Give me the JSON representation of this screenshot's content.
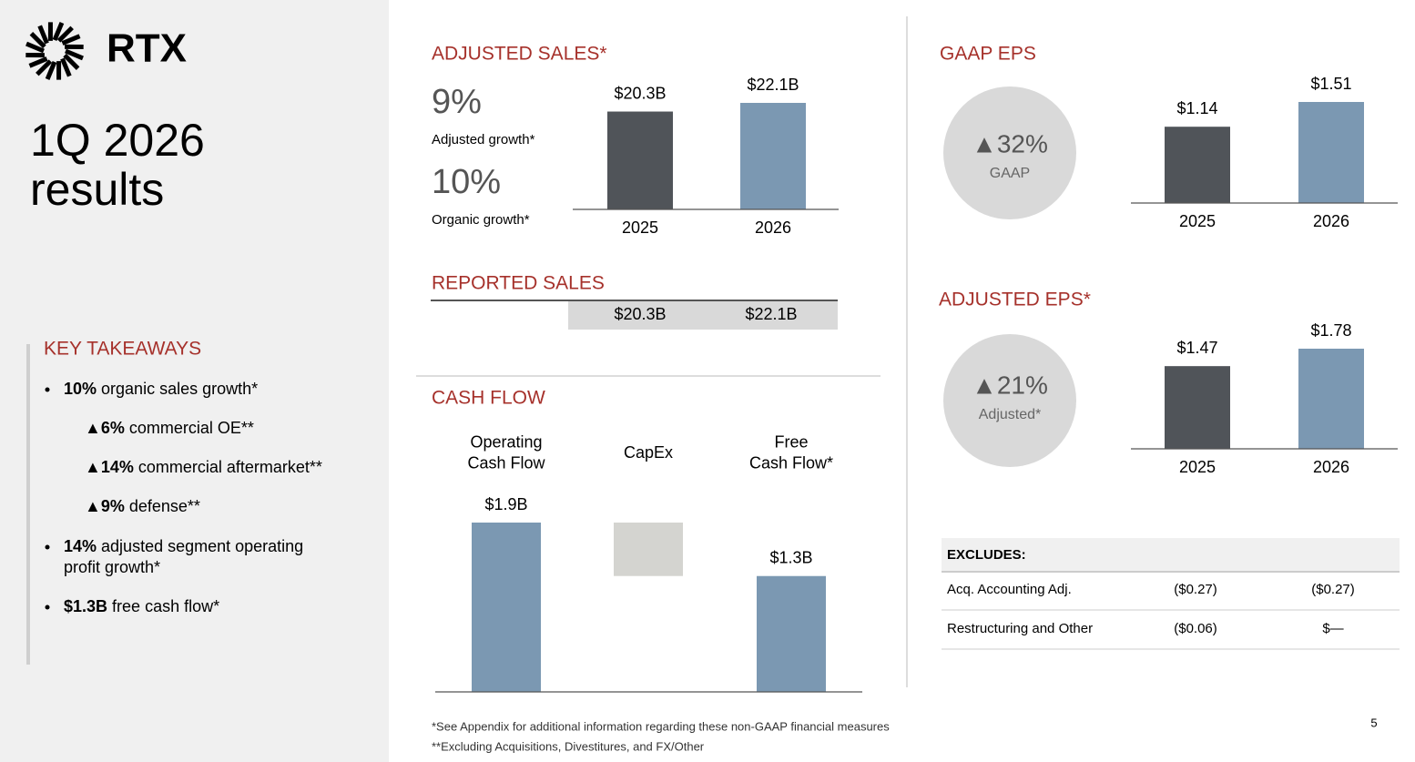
{
  "logo": "RTX",
  "title": {
    "lines": [
      "1Q 2026",
      "results"
    ]
  },
  "takeaways": {
    "heading": "KEY TAKEAWAYS",
    "items": [
      {
        "bold": "10%",
        "text": " organic sales growth*"
      },
      {
        "bold": "▲6%",
        "text": " commercial OE**"
      },
      {
        "bold": "▲14%",
        "text": " commercial aftermarket**"
      },
      {
        "bold": "▲9%",
        "text": " defense**"
      },
      {
        "bold": "14%",
        "text": " adjusted segment operating",
        "text2": "profit growth*"
      },
      {
        "bold": "$1.3B",
        "text": " free cash flow*"
      }
    ]
  },
  "growth": [
    {
      "value": "9%",
      "label": "Adjusted growth*"
    },
    {
      "value": "10%",
      "label": "Organic growth*"
    }
  ],
  "reported_sales": {
    "heading": "REPORTED SALES",
    "values": [
      "$20.3B",
      "$22.1B"
    ]
  },
  "eps_badges": [
    {
      "value": "▲32%",
      "label": "GAAP"
    },
    {
      "value": "▲21%",
      "label": "Adjusted*"
    }
  ],
  "excludes": {
    "header": "EXCLUDES:",
    "rows": [
      [
        "Acq. Accounting Adj.",
        "($0.27)",
        "($0.27)"
      ],
      [
        "Restructuring and Other",
        "($0.06)",
        "$—"
      ]
    ]
  },
  "footnotes": [
    "*See Appendix for additional information regarding these non-GAAP financial measures",
    "**Excluding Acquisitions, Divestitures, and FX/Other"
  ],
  "page_number": "5",
  "chart_data": [
    {
      "type": "bar",
      "title": "ADJUSTED SALES*",
      "categories": [
        "2025",
        "2026"
      ],
      "values": [
        20.3,
        22.1
      ],
      "value_labels": [
        "$20.3B",
        "$22.1B"
      ],
      "colors": [
        "#505459",
        "#7b98b2"
      ]
    },
    {
      "type": "bar",
      "title": "GAAP EPS",
      "categories": [
        "2025",
        "2026"
      ],
      "values": [
        1.14,
        1.51
      ],
      "value_labels": [
        "$1.14",
        "$1.51"
      ],
      "colors": [
        "#505459",
        "#7b98b2"
      ]
    },
    {
      "type": "bar",
      "title": "ADJUSTED EPS*",
      "categories": [
        "2025",
        "2026"
      ],
      "values": [
        1.47,
        1.78
      ],
      "value_labels": [
        "$1.47",
        "$1.78"
      ],
      "colors": [
        "#505459",
        "#7b98b2"
      ]
    },
    {
      "type": "waterfall",
      "title": "CASH FLOW",
      "categories": [
        "Operating\nCash Flow",
        "CapEx",
        "Free\nCash Flow*"
      ],
      "values": [
        1.9,
        -0.6,
        1.3
      ],
      "value_labels": [
        "$1.9B",
        null,
        "$1.3B"
      ],
      "colors": [
        "#7b98b2",
        "#d4d4d0",
        "#7b98b2"
      ]
    }
  ]
}
